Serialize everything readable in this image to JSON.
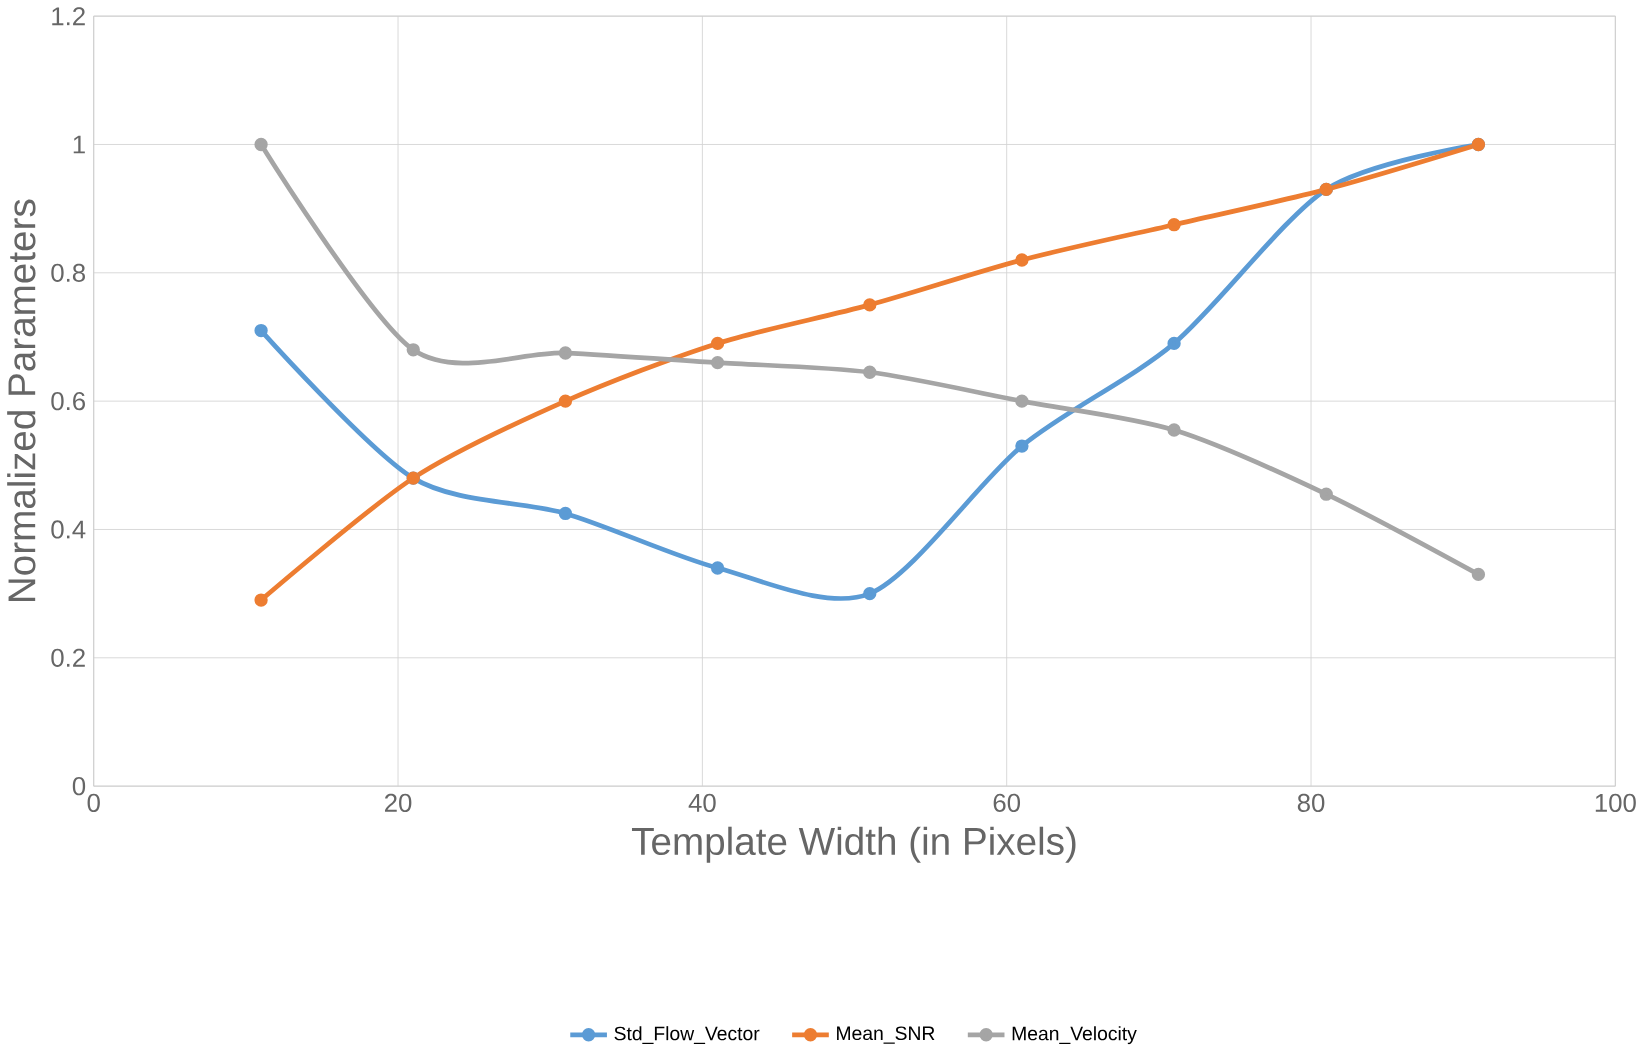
{
  "chart_data": {
    "type": "line",
    "xlabel": "Template Width (in Pixels)",
    "ylabel": "Normalized Parameters",
    "x": [
      11,
      21,
      31,
      41,
      51,
      61,
      71,
      81,
      91
    ],
    "series": [
      {
        "name": "Std_Flow_Vector",
        "color": "#5b9bd5",
        "values": [
          0.71,
          0.48,
          0.425,
          0.34,
          0.3,
          0.53,
          0.69,
          0.93,
          1.0
        ]
      },
      {
        "name": "Mean_SNR",
        "color": "#ed7d31",
        "values": [
          0.29,
          0.48,
          0.6,
          0.69,
          0.75,
          0.82,
          0.875,
          0.93,
          1.0
        ]
      },
      {
        "name": "Mean_Velocity",
        "color": "#a5a5a5",
        "values": [
          1.0,
          0.68,
          0.675,
          0.66,
          0.645,
          0.6,
          0.555,
          0.455,
          0.33
        ]
      }
    ],
    "xlim": [
      0,
      100
    ],
    "xticks": [
      0,
      20,
      40,
      60,
      80,
      100
    ],
    "ylim": [
      0,
      1.2
    ],
    "yticks": [
      0,
      0.2,
      0.4,
      0.6,
      0.8,
      1,
      1.2
    ],
    "grid": true,
    "legend": "bottom",
    "marker": "circle",
    "line_style": "solid"
  }
}
